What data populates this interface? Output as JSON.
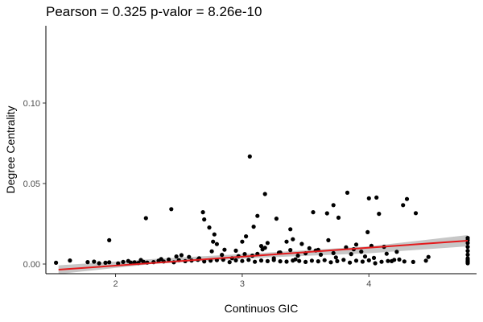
{
  "chart_data": {
    "type": "scatter",
    "title": "Pearson =  0.325  p-valor =  8.26e-10",
    "xlabel": "Continuos GIC",
    "ylabel": "Degree Centrality",
    "xlim": [
      1.45,
      4.85
    ],
    "ylim": [
      -0.006,
      0.148
    ],
    "x_ticks": [
      2,
      3,
      4
    ],
    "x_tick_labels": [
      "2",
      "3",
      "4"
    ],
    "y_ticks": [
      0.0,
      0.05,
      0.1
    ],
    "y_tick_labels": [
      "0.00",
      "0.05",
      "0.10"
    ],
    "grid": false,
    "point_color": "#000000",
    "line_color": "#e41a1c",
    "band_color": "#bdbdbd",
    "regression": {
      "x_start": 1.55,
      "y_start": -0.0035,
      "x_end": 4.78,
      "y_end": 0.0145
    },
    "confidence_band": {
      "x": [
        1.55,
        2.3,
        3.2,
        4.0,
        4.78
      ],
      "lower": [
        -0.0062,
        0.0001,
        0.0041,
        0.0067,
        0.011
      ],
      "upper": [
        -0.0008,
        0.0031,
        0.0071,
        0.011,
        0.018
      ]
    },
    "points": {
      "x": [
        1.53,
        1.64,
        1.78,
        1.83,
        1.87,
        1.92,
        1.95,
        2.02,
        2.06,
        2.12,
        2.15,
        2.18,
        2.22,
        2.25,
        2.3,
        2.34,
        2.38,
        2.42,
        2.46,
        2.5,
        2.55,
        2.6,
        2.65,
        2.7,
        2.75,
        2.8,
        2.85,
        2.9,
        2.95,
        3.0,
        3.05,
        3.1,
        3.15,
        3.2,
        3.25,
        3.3,
        3.35,
        3.4,
        3.45,
        3.5,
        3.55,
        3.6,
        3.65,
        3.7,
        3.75,
        3.8,
        3.85,
        3.9,
        3.95,
        4.0,
        4.05,
        4.1,
        4.15,
        4.2,
        4.28,
        4.35,
        4.45,
        4.78,
        4.78,
        4.78,
        4.78,
        4.78,
        4.78,
        4.78,
        4.78,
        4.78,
        4.78,
        4.78,
        2.1,
        2.36,
        2.58,
        2.66,
        2.84,
        2.97,
        3.12,
        3.29,
        3.44,
        3.58,
        3.72,
        3.88,
        2.2,
        2.48,
        2.76,
        3.02,
        3.18,
        3.38,
        3.62,
        3.82,
        4.02,
        4.22,
        3.08,
        3.16,
        2.8,
        2.95,
        3.35,
        3.5,
        3.68,
        4.12,
        3.25,
        3.9,
        1.95,
        2.24,
        2.44,
        2.69,
        2.7,
        2.74,
        2.78,
        3.06,
        3.09,
        3.12,
        3.18,
        3.27,
        3.38,
        3.4,
        3.56,
        3.67,
        3.72,
        3.76,
        3.83,
        3.99,
        4.0,
        4.06,
        4.08,
        4.27,
        4.3,
        4.37,
        2.77,
        2.86,
        3.0,
        3.03,
        3.15,
        3.2,
        3.3,
        3.47,
        3.53,
        3.6,
        3.74,
        3.86,
        3.94,
        4.04,
        4.14,
        4.24,
        4.47,
        2.52,
        2.92,
        3.42,
        3.97,
        4.18
      ],
      "y": [
        0.0008,
        0.0022,
        0.0012,
        0.0015,
        0.0005,
        0.0008,
        0.0011,
        0.0004,
        0.0013,
        0.0009,
        0.0011,
        0.0007,
        0.0014,
        0.0009,
        0.0012,
        0.0021,
        0.0016,
        0.0028,
        0.0011,
        0.0024,
        0.0018,
        0.0022,
        0.0026,
        0.0016,
        0.0021,
        0.0024,
        0.0027,
        0.0012,
        0.0023,
        0.0019,
        0.0026,
        0.0014,
        0.0022,
        0.0018,
        0.0025,
        0.0017,
        0.0015,
        0.0022,
        0.0019,
        0.0013,
        0.0021,
        0.0017,
        0.0024,
        0.0011,
        0.0018,
        0.0026,
        0.0009,
        0.0021,
        0.0015,
        0.0023,
        0.0005,
        0.0014,
        0.0019,
        0.0026,
        0.0016,
        0.0013,
        0.0021,
        0.0012,
        0.0016,
        0.0005,
        0.0025,
        0.0035,
        0.0058,
        0.0082,
        0.0107,
        0.0131,
        0.0148,
        0.0162,
        0.0019,
        0.0031,
        0.0044,
        0.0036,
        0.0057,
        0.0049,
        0.0063,
        0.0071,
        0.0052,
        0.0084,
        0.0068,
        0.0092,
        0.0025,
        0.0047,
        0.0079,
        0.0062,
        0.0101,
        0.0087,
        0.0058,
        0.0104,
        0.0113,
        0.0076,
        0.0052,
        0.0091,
        0.0124,
        0.0083,
        0.0139,
        0.0067,
        0.0148,
        0.0107,
        0.0036,
        0.0121,
        0.0148,
        0.0285,
        0.0341,
        0.0322,
        0.0277,
        0.0227,
        0.0184,
        0.0668,
        0.0232,
        0.0299,
        0.0435,
        0.0282,
        0.0216,
        0.0154,
        0.0322,
        0.0315,
        0.0366,
        0.0288,
        0.0443,
        0.0198,
        0.0408,
        0.0413,
        0.0312,
        0.0366,
        0.0404,
        0.0316,
        0.0139,
        0.0089,
        0.0139,
        0.0172,
        0.0112,
        0.0131,
        0.0072,
        0.0125,
        0.0098,
        0.0088,
        0.0041,
        0.0062,
        0.0077,
        0.0038,
        0.0064,
        0.0028,
        0.0044,
        0.0055,
        0.0036,
        0.0029,
        0.0047,
        0.0018
      ]
    }
  }
}
